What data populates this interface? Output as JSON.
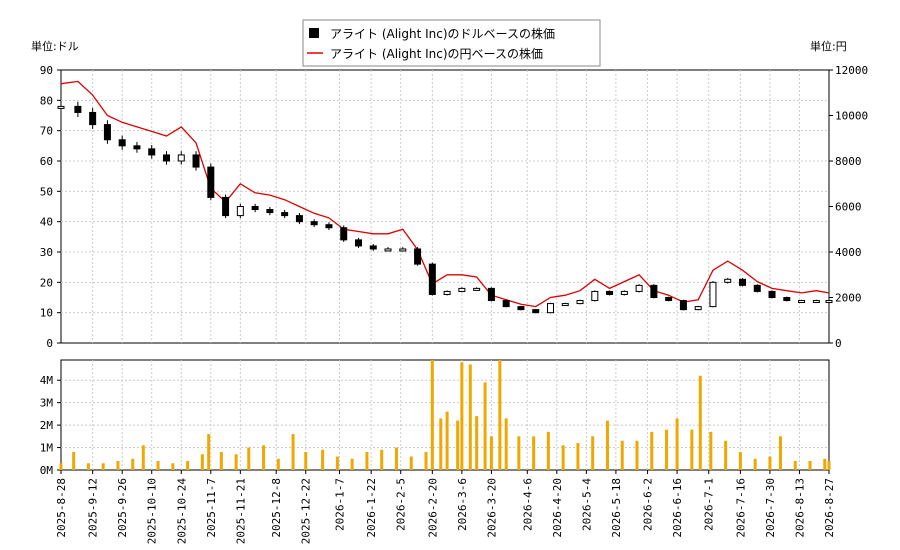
{
  "chart_data": [
    {
      "type": "candlestick",
      "legend": {
        "usd_label": "アライト (Alight Inc)のドルベースの株価",
        "jpy_label": "アライト (Alight Inc)の円ベースの株価",
        "placement": "top-center"
      },
      "left_axis": {
        "unit_label": "単位:ドル",
        "ticks": [
          0,
          10,
          20,
          30,
          40,
          50,
          60,
          70,
          80,
          90
        ],
        "range": [
          0,
          90
        ]
      },
      "right_axis": {
        "unit_label": "単位:円",
        "ticks": [
          0,
          2000,
          4000,
          6000,
          8000,
          10000,
          12000
        ],
        "range": [
          0,
          12000
        ]
      },
      "grid": true,
      "series": [
        {
          "name": "アライト (Alight Inc)のドルベースの株価",
          "color": "#000000",
          "points": [
            [
              "2025-08-28",
              78
            ],
            [
              "2025-09-05",
              76
            ],
            [
              "2025-09-12",
              72
            ],
            [
              "2025-09-19",
              67
            ],
            [
              "2025-09-26",
              65
            ],
            [
              "2025-10-03",
              64
            ],
            [
              "2025-10-10",
              62
            ],
            [
              "2025-10-17",
              60
            ],
            [
              "2025-10-24",
              62
            ],
            [
              "2025-10-31",
              58
            ],
            [
              "2025-11-07",
              48
            ],
            [
              "2025-11-14",
              42
            ],
            [
              "2025-11-21",
              45
            ],
            [
              "2025-11-28",
              44
            ],
            [
              "2025-12-05",
              43
            ],
            [
              "2025-12-12",
              42
            ],
            [
              "2025-12-19",
              40
            ],
            [
              "2025-12-26",
              39
            ],
            [
              "2026-01-02",
              38
            ],
            [
              "2026-01-09",
              34
            ],
            [
              "2026-01-16",
              32
            ],
            [
              "2026-01-23",
              31
            ],
            [
              "2026-01-30",
              31
            ],
            [
              "2026-02-06",
              31
            ],
            [
              "2026-02-13",
              26
            ],
            [
              "2026-02-20",
              16
            ],
            [
              "2026-02-27",
              17
            ],
            [
              "2026-03-06",
              18
            ],
            [
              "2026-03-13",
              18
            ],
            [
              "2026-03-20",
              14
            ],
            [
              "2026-03-27",
              12
            ],
            [
              "2026-04-03",
              11
            ],
            [
              "2026-04-10",
              10
            ],
            [
              "2026-04-17",
              13
            ],
            [
              "2026-04-24",
              13
            ],
            [
              "2026-05-01",
              14
            ],
            [
              "2026-05-08",
              17
            ],
            [
              "2026-05-15",
              16
            ],
            [
              "2026-05-22",
              17
            ],
            [
              "2026-05-29",
              19
            ],
            [
              "2026-06-05",
              15
            ],
            [
              "2026-06-12",
              14
            ],
            [
              "2026-06-19",
              11
            ],
            [
              "2026-06-26",
              12
            ],
            [
              "2026-07-03",
              20
            ],
            [
              "2026-07-10",
              21
            ],
            [
              "2026-07-17",
              19
            ],
            [
              "2026-07-24",
              17
            ],
            [
              "2026-07-31",
              15
            ],
            [
              "2026-08-07",
              14
            ],
            [
              "2026-08-14",
              14
            ],
            [
              "2026-08-21",
              14
            ],
            [
              "2026-08-27",
              14
            ]
          ]
        },
        {
          "name": "アライト (Alight Inc)の円ベースの株価",
          "color": "#dd0000",
          "points": [
            [
              "2025-08-28",
              11400
            ],
            [
              "2025-09-05",
              11500
            ],
            [
              "2025-09-12",
              10900
            ],
            [
              "2025-09-19",
              10000
            ],
            [
              "2025-09-26",
              9700
            ],
            [
              "2025-10-03",
              9500
            ],
            [
              "2025-10-10",
              9300
            ],
            [
              "2025-10-17",
              9100
            ],
            [
              "2025-10-24",
              9500
            ],
            [
              "2025-10-31",
              8800
            ],
            [
              "2025-11-07",
              6800
            ],
            [
              "2025-11-14",
              6200
            ],
            [
              "2025-11-21",
              7000
            ],
            [
              "2025-11-28",
              6600
            ],
            [
              "2025-12-05",
              6500
            ],
            [
              "2025-12-12",
              6300
            ],
            [
              "2025-12-19",
              6000
            ],
            [
              "2025-12-26",
              5700
            ],
            [
              "2026-01-02",
              5500
            ],
            [
              "2026-01-09",
              5000
            ],
            [
              "2026-01-16",
              4900
            ],
            [
              "2026-01-23",
              4800
            ],
            [
              "2026-01-30",
              4800
            ],
            [
              "2026-02-06",
              5000
            ],
            [
              "2026-02-13",
              4100
            ],
            [
              "2026-02-20",
              2600
            ],
            [
              "2026-02-27",
              3000
            ],
            [
              "2026-03-06",
              3000
            ],
            [
              "2026-03-13",
              2900
            ],
            [
              "2026-03-20",
              2100
            ],
            [
              "2026-03-27",
              1900
            ],
            [
              "2026-04-03",
              1700
            ],
            [
              "2026-04-10",
              1600
            ],
            [
              "2026-04-17",
              2000
            ],
            [
              "2026-04-24",
              2100
            ],
            [
              "2026-05-01",
              2300
            ],
            [
              "2026-05-08",
              2800
            ],
            [
              "2026-05-15",
              2400
            ],
            [
              "2026-05-22",
              2700
            ],
            [
              "2026-05-29",
              3000
            ],
            [
              "2026-06-05",
              2300
            ],
            [
              "2026-06-12",
              2100
            ],
            [
              "2026-06-19",
              1800
            ],
            [
              "2026-06-26",
              1900
            ],
            [
              "2026-07-03",
              3200
            ],
            [
              "2026-07-10",
              3600
            ],
            [
              "2026-07-17",
              3200
            ],
            [
              "2026-07-24",
              2700
            ],
            [
              "2026-07-31",
              2400
            ],
            [
              "2026-08-07",
              2300
            ],
            [
              "2026-08-14",
              2200
            ],
            [
              "2026-08-21",
              2300
            ],
            [
              "2026-08-27",
              2200
            ]
          ]
        }
      ]
    },
    {
      "type": "bar",
      "color": "#f0a800",
      "y_axis": {
        "ticks": [
          0,
          1,
          2,
          3,
          4
        ],
        "tick_labels": [
          "0M",
          "1M",
          "2M",
          "3M",
          "4M"
        ],
        "range": [
          0,
          4.9
        ]
      },
      "x_axis": {
        "range": [
          "2025-08-28",
          "2026-08-27"
        ],
        "tick_labels": [
          "2025-8-28",
          "2025-9-12",
          "2025-9-26",
          "2025-10-10",
          "2025-10-24",
          "2025-11-7",
          "2025-11-21",
          "2025-12-8",
          "2025-12-22",
          "2026-1-7",
          "2026-1-22",
          "2026-2-5",
          "2026-2-20",
          "2026-3-6",
          "2026-3-20",
          "2026-4-6",
          "2026-4-20",
          "2026-5-4",
          "2026-5-18",
          "2026-6-2",
          "2026-6-16",
          "2026-7-1",
          "2026-7-16",
          "2026-7-30",
          "2026-8-13",
          "2026-8-27"
        ],
        "tick_dates": [
          "2025-08-28",
          "2025-09-12",
          "2025-09-26",
          "2025-10-10",
          "2025-10-24",
          "2025-11-07",
          "2025-11-21",
          "2025-12-08",
          "2025-12-22",
          "2026-01-07",
          "2026-01-22",
          "2026-02-05",
          "2026-02-20",
          "2026-03-06",
          "2026-03-20",
          "2026-04-06",
          "2026-04-20",
          "2026-05-04",
          "2026-05-18",
          "2026-06-02",
          "2026-06-16",
          "2026-07-01",
          "2026-07-16",
          "2026-07-30",
          "2026-08-13",
          "2026-08-27"
        ]
      },
      "volume": [
        [
          "2025-08-28",
          0.3
        ],
        [
          "2025-09-03",
          0.8
        ],
        [
          "2025-09-10",
          0.3
        ],
        [
          "2025-09-17",
          0.3
        ],
        [
          "2025-09-24",
          0.4
        ],
        [
          "2025-10-01",
          0.5
        ],
        [
          "2025-10-06",
          1.1
        ],
        [
          "2025-10-13",
          0.4
        ],
        [
          "2025-10-20",
          0.3
        ],
        [
          "2025-10-27",
          0.4
        ],
        [
          "2025-11-03",
          0.7
        ],
        [
          "2025-11-06",
          1.6
        ],
        [
          "2025-11-12",
          0.8
        ],
        [
          "2025-11-19",
          0.7
        ],
        [
          "2025-11-25",
          1.0
        ],
        [
          "2025-12-02",
          1.1
        ],
        [
          "2025-12-09",
          0.5
        ],
        [
          "2025-12-16",
          1.6
        ],
        [
          "2025-12-22",
          0.8
        ],
        [
          "2025-12-30",
          0.9
        ],
        [
          "2026-01-06",
          0.6
        ],
        [
          "2026-01-13",
          0.5
        ],
        [
          "2026-01-20",
          0.8
        ],
        [
          "2026-01-27",
          0.9
        ],
        [
          "2026-02-03",
          1.0
        ],
        [
          "2026-02-10",
          0.6
        ],
        [
          "2026-02-17",
          0.8
        ],
        [
          "2026-02-20",
          4.9
        ],
        [
          "2026-02-24",
          2.3
        ],
        [
          "2026-02-27",
          2.6
        ],
        [
          "2026-03-04",
          2.2
        ],
        [
          "2026-03-06",
          4.8
        ],
        [
          "2026-03-10",
          4.7
        ],
        [
          "2026-03-13",
          2.4
        ],
        [
          "2026-03-17",
          3.9
        ],
        [
          "2026-03-20",
          1.5
        ],
        [
          "2026-03-24",
          4.9
        ],
        [
          "2026-03-27",
          2.3
        ],
        [
          "2026-04-02",
          1.5
        ],
        [
          "2026-04-09",
          1.5
        ],
        [
          "2026-04-16",
          1.7
        ],
        [
          "2026-04-23",
          1.1
        ],
        [
          "2026-04-30",
          1.2
        ],
        [
          "2026-05-07",
          1.5
        ],
        [
          "2026-05-14",
          2.2
        ],
        [
          "2026-05-21",
          1.3
        ],
        [
          "2026-05-28",
          1.3
        ],
        [
          "2026-06-04",
          1.7
        ],
        [
          "2026-06-11",
          1.8
        ],
        [
          "2026-06-16",
          2.3
        ],
        [
          "2026-06-23",
          1.8
        ],
        [
          "2026-06-27",
          4.2
        ],
        [
          "2026-07-02",
          1.7
        ],
        [
          "2026-07-09",
          1.3
        ],
        [
          "2026-07-16",
          0.8
        ],
        [
          "2026-07-23",
          0.5
        ],
        [
          "2026-07-30",
          0.6
        ],
        [
          "2026-08-04",
          1.5
        ],
        [
          "2026-08-11",
          0.4
        ],
        [
          "2026-08-18",
          0.4
        ],
        [
          "2026-08-25",
          0.5
        ],
        [
          "2026-08-27",
          0.4
        ]
      ]
    }
  ]
}
